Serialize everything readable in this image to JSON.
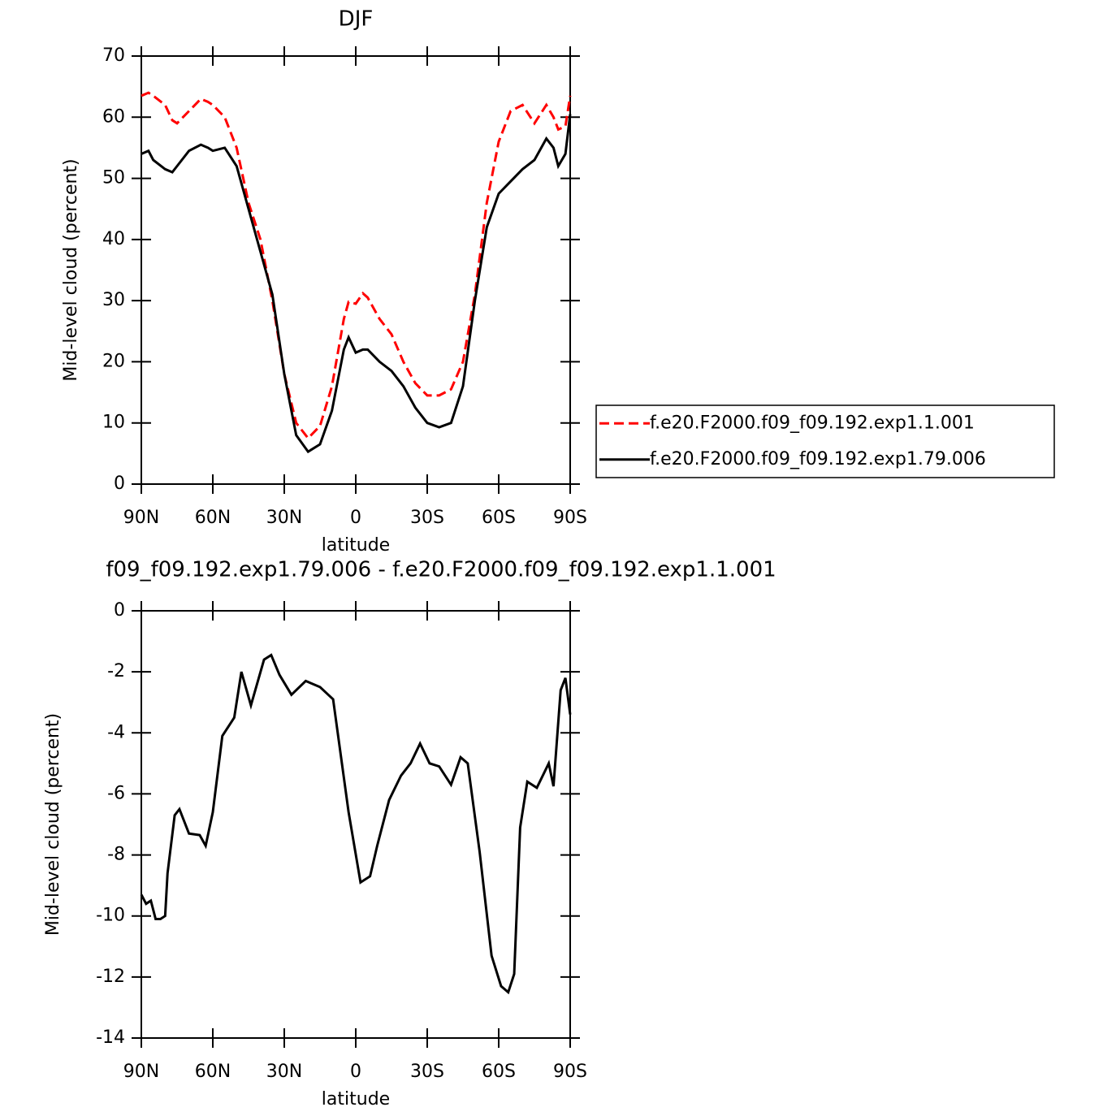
{
  "chart_data": [
    {
      "type": "line",
      "title": "DJF",
      "xlabel": "latitude",
      "ylabel": "Mid-level cloud (percent)",
      "x": [
        90,
        87,
        85,
        80,
        77,
        75,
        70,
        65,
        62,
        60,
        55,
        50,
        45,
        40,
        35,
        30,
        25,
        20,
        15,
        10,
        5,
        3,
        0,
        -3,
        -5,
        -10,
        -15,
        -20,
        -25,
        -30,
        -35,
        -40,
        -45,
        -50,
        -55,
        -60,
        -65,
        -70,
        -75,
        -80,
        -83,
        -85,
        -88,
        -90
      ],
      "xlim": [
        90,
        -90
      ],
      "xticks": [
        {
          "value": 90,
          "label": "90N"
        },
        {
          "value": 60,
          "label": "60N"
        },
        {
          "value": 30,
          "label": "30N"
        },
        0,
        {
          "value": -30,
          "label": "30S"
        },
        {
          "value": -60,
          "label": "60S"
        },
        {
          "value": -90,
          "label": "90S"
        }
      ],
      "ylim": [
        0,
        70
      ],
      "yticks": [
        0,
        10,
        20,
        30,
        40,
        50,
        60,
        70
      ],
      "series": [
        {
          "name": "f.e20.F2000.f09_f09.192.exp1.1.001",
          "color": "#ff0000",
          "line_style": "dashed",
          "values": [
            63.5,
            64,
            63.5,
            62,
            59.5,
            59,
            61,
            63,
            62.5,
            62,
            60,
            55,
            46,
            40,
            30,
            18,
            10,
            7.5,
            9.5,
            16,
            27,
            29.8,
            29.5,
            31.2,
            30.5,
            27,
            24.5,
            20,
            16.5,
            14.5,
            14.5,
            15.5,
            20,
            31,
            46,
            56,
            61,
            62,
            59,
            62,
            60,
            58,
            58.5,
            63.5
          ]
        },
        {
          "name": "f.e20.F2000.f09_f09.192.exp1.79.006",
          "color": "#000000",
          "line_style": "solid",
          "values": [
            54,
            54.5,
            53,
            51.5,
            51,
            52,
            54.5,
            55.5,
            55,
            54.5,
            55,
            52,
            45,
            38,
            31,
            18,
            8,
            5.3,
            6.5,
            12,
            22,
            24,
            21.5,
            22,
            22,
            20,
            18.5,
            16,
            12.5,
            10,
            9.3,
            10,
            16,
            30,
            42,
            47.5,
            49.5,
            51.5,
            53,
            56.5,
            55,
            52,
            54,
            60.5
          ]
        }
      ]
    },
    {
      "type": "line",
      "title": "f09_f09.192.exp1.79.006 - f.e20.F2000.f09_f09.192.exp1.1.001",
      "xlabel": "latitude",
      "ylabel": "Mid-level cloud (percent)",
      "x": [
        90,
        88,
        86,
        84,
        82,
        80,
        79,
        76,
        74,
        70,
        65.5,
        63,
        60,
        56,
        51,
        48,
        44,
        38.5,
        35.5,
        32,
        27,
        21,
        15,
        9.5,
        3,
        -2,
        -6,
        -9,
        -14,
        -19,
        -23,
        -27,
        -31,
        -35,
        -40,
        -44,
        -47,
        -52,
        -57,
        -61,
        -64,
        -66.5,
        -69,
        -72,
        -76,
        -81,
        -83,
        -86,
        -88,
        -90
      ],
      "xlim": [
        90,
        -90
      ],
      "xticks": [
        {
          "value": 90,
          "label": "90N"
        },
        {
          "value": 60,
          "label": "60N"
        },
        {
          "value": 30,
          "label": "30N"
        },
        0,
        {
          "value": -30,
          "label": "30S"
        },
        {
          "value": -60,
          "label": "60S"
        },
        {
          "value": -90,
          "label": "90S"
        }
      ],
      "ylim": [
        -14,
        0
      ],
      "yticks": [
        0,
        -2,
        -4,
        -6,
        -8,
        -10,
        -12,
        -14
      ],
      "series": [
        {
          "color": "#000000",
          "line_style": "solid",
          "values": [
            -9.3,
            -9.6,
            -9.5,
            -10.1,
            -10.1,
            -10,
            -8.6,
            -6.7,
            -6.5,
            -7.3,
            -7.35,
            -7.7,
            -6.6,
            -4.1,
            -3.5,
            -2.0,
            -3.1,
            -1.6,
            -1.45,
            -2.1,
            -2.75,
            -2.3,
            -2.5,
            -2.9,
            -6.6,
            -8.9,
            -8.7,
            -7.7,
            -6.2,
            -5.4,
            -5.0,
            -4.35,
            -5.0,
            -5.1,
            -5.7,
            -4.8,
            -5.0,
            -7.9,
            -11.3,
            -12.3,
            -12.5,
            -11.9,
            -7.1,
            -5.6,
            -5.8,
            -5.0,
            -5.75,
            -2.6,
            -2.2,
            -3.4
          ]
        }
      ]
    }
  ]
}
